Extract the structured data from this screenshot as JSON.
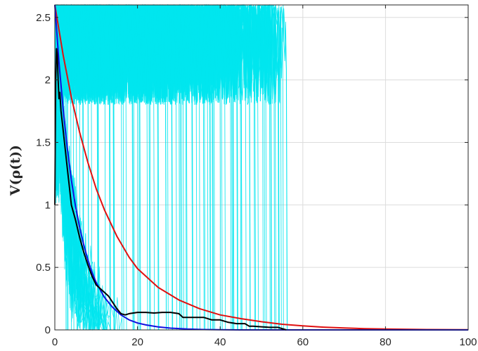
{
  "chart_data": {
    "type": "line",
    "title": "",
    "xlabel": "",
    "ylabel": "V(ρ(t))",
    "xlim": [
      0,
      100
    ],
    "ylim": [
      0,
      2.6
    ],
    "xticks": [
      0,
      20,
      40,
      60,
      80,
      100
    ],
    "xtick_labels": [
      "0",
      "20",
      "40",
      "60",
      "80",
      "100"
    ],
    "yticks": [
      0,
      0.5,
      1,
      1.5,
      2,
      2.5
    ],
    "ytick_labels": [
      "0",
      "0.5",
      "1",
      "1.5",
      "2",
      "2.5"
    ],
    "grid": true,
    "legend": "none",
    "colors": {
      "trajectories": "#00e5ee",
      "mean": "#000000",
      "bound_fast": "#1010e0",
      "bound_slow": "#e01010",
      "axis": "#262626",
      "grid": "#dcdcdc"
    },
    "series": [
      {
        "style": "blue-smooth",
        "color": "#1010e0",
        "x": [
          0,
          1,
          2,
          3,
          4,
          5,
          6,
          7,
          8,
          9,
          10,
          12,
          14,
          16,
          18,
          20,
          22,
          25,
          28,
          32,
          36,
          40,
          45,
          50,
          100
        ],
        "y": [
          2.6,
          2.14,
          1.77,
          1.46,
          1.2,
          0.99,
          0.82,
          0.68,
          0.56,
          0.46,
          0.38,
          0.26,
          0.18,
          0.12,
          0.08,
          0.055,
          0.04,
          0.024,
          0.014,
          0.007,
          0.003,
          0.001,
          0.0,
          0.0,
          0.0
        ]
      },
      {
        "style": "red-smooth",
        "color": "#e01010",
        "x": [
          0,
          2,
          4,
          6,
          8,
          10,
          12,
          15,
          18,
          20,
          25,
          30,
          35,
          40,
          45,
          50,
          55,
          60,
          65,
          70,
          75,
          80,
          90,
          100
        ],
        "y": [
          2.6,
          2.2,
          1.86,
          1.58,
          1.34,
          1.13,
          0.96,
          0.75,
          0.58,
          0.49,
          0.34,
          0.24,
          0.17,
          0.12,
          0.09,
          0.065,
          0.045,
          0.032,
          0.022,
          0.015,
          0.01,
          0.007,
          0.003,
          0.001
        ]
      },
      {
        "style": "black-mean",
        "color": "#000000",
        "x": [
          0,
          0.2,
          0.4,
          0.6,
          0.8,
          1.0,
          1.2,
          1.5,
          2.0,
          2.5,
          3,
          3.5,
          4,
          5,
          6,
          7,
          8,
          9,
          10,
          11,
          12,
          13,
          14,
          15,
          16,
          17,
          18,
          20,
          22,
          24,
          26,
          28,
          30,
          31,
          32,
          34,
          36,
          38,
          40,
          42,
          44,
          46,
          47,
          48,
          50,
          52,
          54,
          55,
          56
        ],
        "y": [
          1.0,
          2.0,
          2.25,
          2.2,
          2.0,
          1.85,
          1.9,
          1.75,
          1.6,
          1.45,
          1.3,
          1.15,
          1.0,
          0.88,
          0.74,
          0.62,
          0.52,
          0.43,
          0.36,
          0.33,
          0.3,
          0.27,
          0.22,
          0.17,
          0.13,
          0.12,
          0.13,
          0.14,
          0.14,
          0.135,
          0.14,
          0.14,
          0.13,
          0.1,
          0.1,
          0.1,
          0.1,
          0.08,
          0.08,
          0.06,
          0.05,
          0.05,
          0.03,
          0.03,
          0.025,
          0.02,
          0.02,
          0.01,
          0.0
        ]
      }
    ],
    "trajectory_band": {
      "style": "cyan-sample-paths",
      "color": "#00e5ee",
      "x_extent": [
        0,
        55
      ],
      "y_extent": [
        0,
        2.6
      ],
      "dropout_x": [
        2,
        4,
        6,
        8,
        10,
        12,
        14,
        16,
        18,
        20,
        22,
        24,
        26,
        28,
        30,
        31,
        33,
        35,
        37,
        38,
        40,
        42,
        43,
        45,
        46,
        48,
        50,
        52,
        53,
        54,
        55
      ]
    }
  }
}
